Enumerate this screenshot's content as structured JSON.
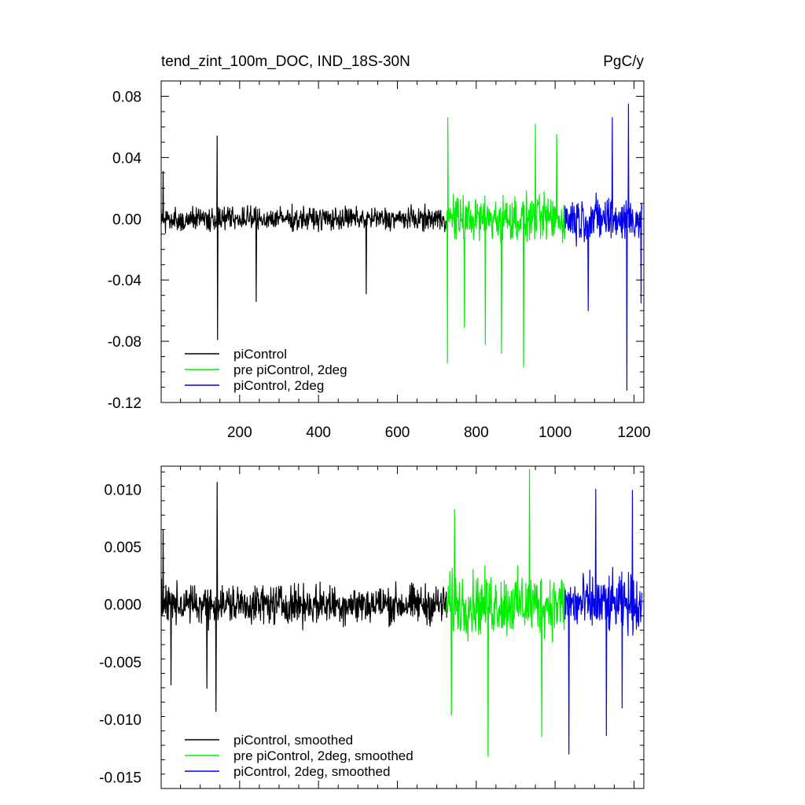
{
  "chart_data": [
    {
      "type": "line",
      "title": "tend_zint_100m_DOC, IND_18S-30N",
      "units": "PgC/y",
      "xlim": [
        1,
        1225
      ],
      "ylim": [
        -0.12,
        0.09
      ],
      "xticks": [
        200,
        400,
        600,
        800,
        1000,
        1200
      ],
      "xtick_labels": [
        "200",
        "400",
        "600",
        "800",
        "1000",
        "1200"
      ],
      "yticks": [
        0.08,
        0.04,
        0.0,
        -0.04,
        -0.08,
        -0.12
      ],
      "ytick_labels": [
        "0.08",
        "0.04",
        "0.00",
        "-0.04",
        "-0.08",
        "-0.12"
      ],
      "legend_position": "bottom-left",
      "series": [
        {
          "name": "piControl",
          "color": "#000000",
          "x_range": [
            1,
            725
          ],
          "typical_amplitude": 0.011,
          "min": -0.079,
          "max": 0.054,
          "spikes": [
            [
              143,
              0.054
            ],
            [
              144,
              -0.079
            ],
            [
              242,
              -0.054
            ],
            [
              521,
              -0.049
            ],
            [
              6,
              0.031
            ]
          ]
        },
        {
          "name": "pre piControl, 2deg",
          "color": "#00ee00",
          "x_range": [
            725,
            1025
          ],
          "typical_amplitude": 0.022,
          "min": -0.097,
          "max": 0.066,
          "spikes": [
            [
              728,
              0.066
            ],
            [
              727,
              -0.094
            ],
            [
              770,
              -0.071
            ],
            [
              823,
              -0.082
            ],
            [
              864,
              -0.088
            ],
            [
              920,
              -0.097
            ],
            [
              950,
              0.062
            ],
            [
              1004,
              0.055
            ]
          ]
        },
        {
          "name": "piControl, 2deg",
          "color": "#0000ee",
          "x_range": [
            1025,
            1220
          ],
          "typical_amplitude": 0.022,
          "min": -0.112,
          "max": 0.075,
          "spikes": [
            [
              1145,
              0.066
            ],
            [
              1182,
              -0.112
            ],
            [
              1186,
              0.075
            ],
            [
              1084,
              -0.06
            ],
            [
              1218,
              -0.055
            ]
          ]
        }
      ]
    },
    {
      "type": "line",
      "title": "",
      "xlim": [
        1,
        1225
      ],
      "ylim": [
        -0.016,
        0.012
      ],
      "xticks": [
        200,
        400,
        600,
        800,
        1000,
        1200
      ],
      "yticks": [
        0.01,
        0.005,
        0.0,
        -0.005,
        -0.01,
        -0.015
      ],
      "ytick_labels": [
        "0.010",
        "0.005",
        "0.000",
        "-0.005",
        "-0.010",
        "-0.015"
      ],
      "legend_position": "bottom-left",
      "series": [
        {
          "name": "piControl, smoothed",
          "color": "#000000",
          "x_range": [
            1,
            725
          ],
          "typical_amplitude": 0.0025,
          "min": -0.0093,
          "max": 0.0106,
          "spikes": [
            [
              143,
              0.0106
            ],
            [
              140,
              -0.0093
            ],
            [
              26,
              -0.007
            ],
            [
              6,
              0.0065
            ],
            [
              117,
              -0.0073
            ]
          ]
        },
        {
          "name": "pre piControl, 2deg, smoothed",
          "color": "#00ee00",
          "x_range": [
            725,
            1025
          ],
          "typical_amplitude": 0.004,
          "min": -0.0132,
          "max": 0.0117,
          "spikes": [
            [
              935,
              0.0117
            ],
            [
              830,
              -0.0132
            ],
            [
              966,
              -0.0115
            ],
            [
              737,
              -0.0096
            ],
            [
              745,
              0.0082
            ]
          ]
        },
        {
          "name": "piControl, 2deg, smoothed",
          "color": "#0000ee",
          "x_range": [
            1025,
            1220
          ],
          "typical_amplitude": 0.0037,
          "min": -0.013,
          "max": 0.01,
          "spikes": [
            [
              1035,
              -0.013
            ],
            [
              1103,
              0.01
            ],
            [
              1130,
              -0.0114
            ],
            [
              1196,
              0.0099
            ],
            [
              1170,
              -0.009
            ]
          ]
        }
      ]
    }
  ]
}
